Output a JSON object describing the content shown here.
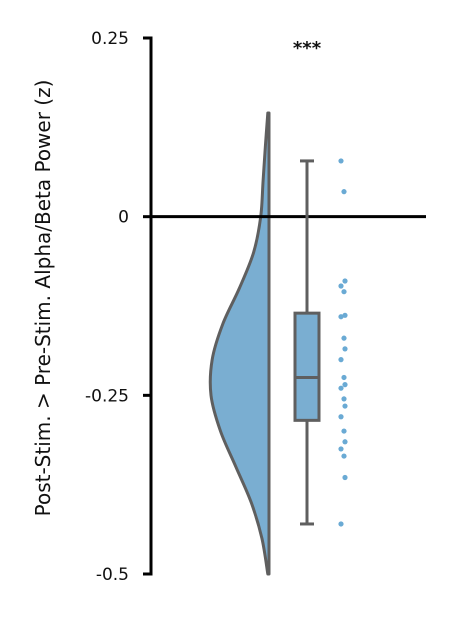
{
  "chart_data": {
    "type": "raincloud",
    "title": "",
    "xlabel": "",
    "ylabel": "Post-Stim. > Pre-Stim. Alpha/Beta Power (z)",
    "ylim": [
      -0.5,
      0.25
    ],
    "yticks": [
      0.25,
      0,
      -0.25,
      -0.5
    ],
    "ytick_labels": [
      "0.25",
      "0",
      "-0.25",
      "-0.5"
    ],
    "zero_line": 0,
    "significance_label": "***",
    "grid": false,
    "colors": {
      "violin_fill": "#7aaed1",
      "violin_stroke": "#5f5f5f",
      "box_fill": "#7aaed1",
      "box_stroke": "#5f5f5f",
      "points": "#6aaad4",
      "axis": "#000000"
    },
    "violin": {
      "y": [
        0.145,
        0.1,
        0.05,
        0.0,
        -0.05,
        -0.1,
        -0.15,
        -0.2,
        -0.25,
        -0.3,
        -0.35,
        -0.4,
        -0.45,
        -0.5
      ],
      "density": [
        0.02,
        0.06,
        0.1,
        0.14,
        0.26,
        0.5,
        0.78,
        0.96,
        0.98,
        0.82,
        0.56,
        0.3,
        0.12,
        0.02
      ]
    },
    "box": {
      "whisker_low": -0.43,
      "q1": -0.285,
      "median": -0.225,
      "q3": -0.135,
      "whisker_high": 0.078
    },
    "points": [
      0.078,
      0.035,
      -0.09,
      -0.097,
      -0.105,
      -0.138,
      -0.14,
      -0.17,
      -0.185,
      -0.2,
      -0.225,
      -0.235,
      -0.24,
      -0.255,
      -0.265,
      -0.28,
      -0.3,
      -0.315,
      -0.325,
      -0.335,
      -0.365,
      -0.43
    ]
  }
}
